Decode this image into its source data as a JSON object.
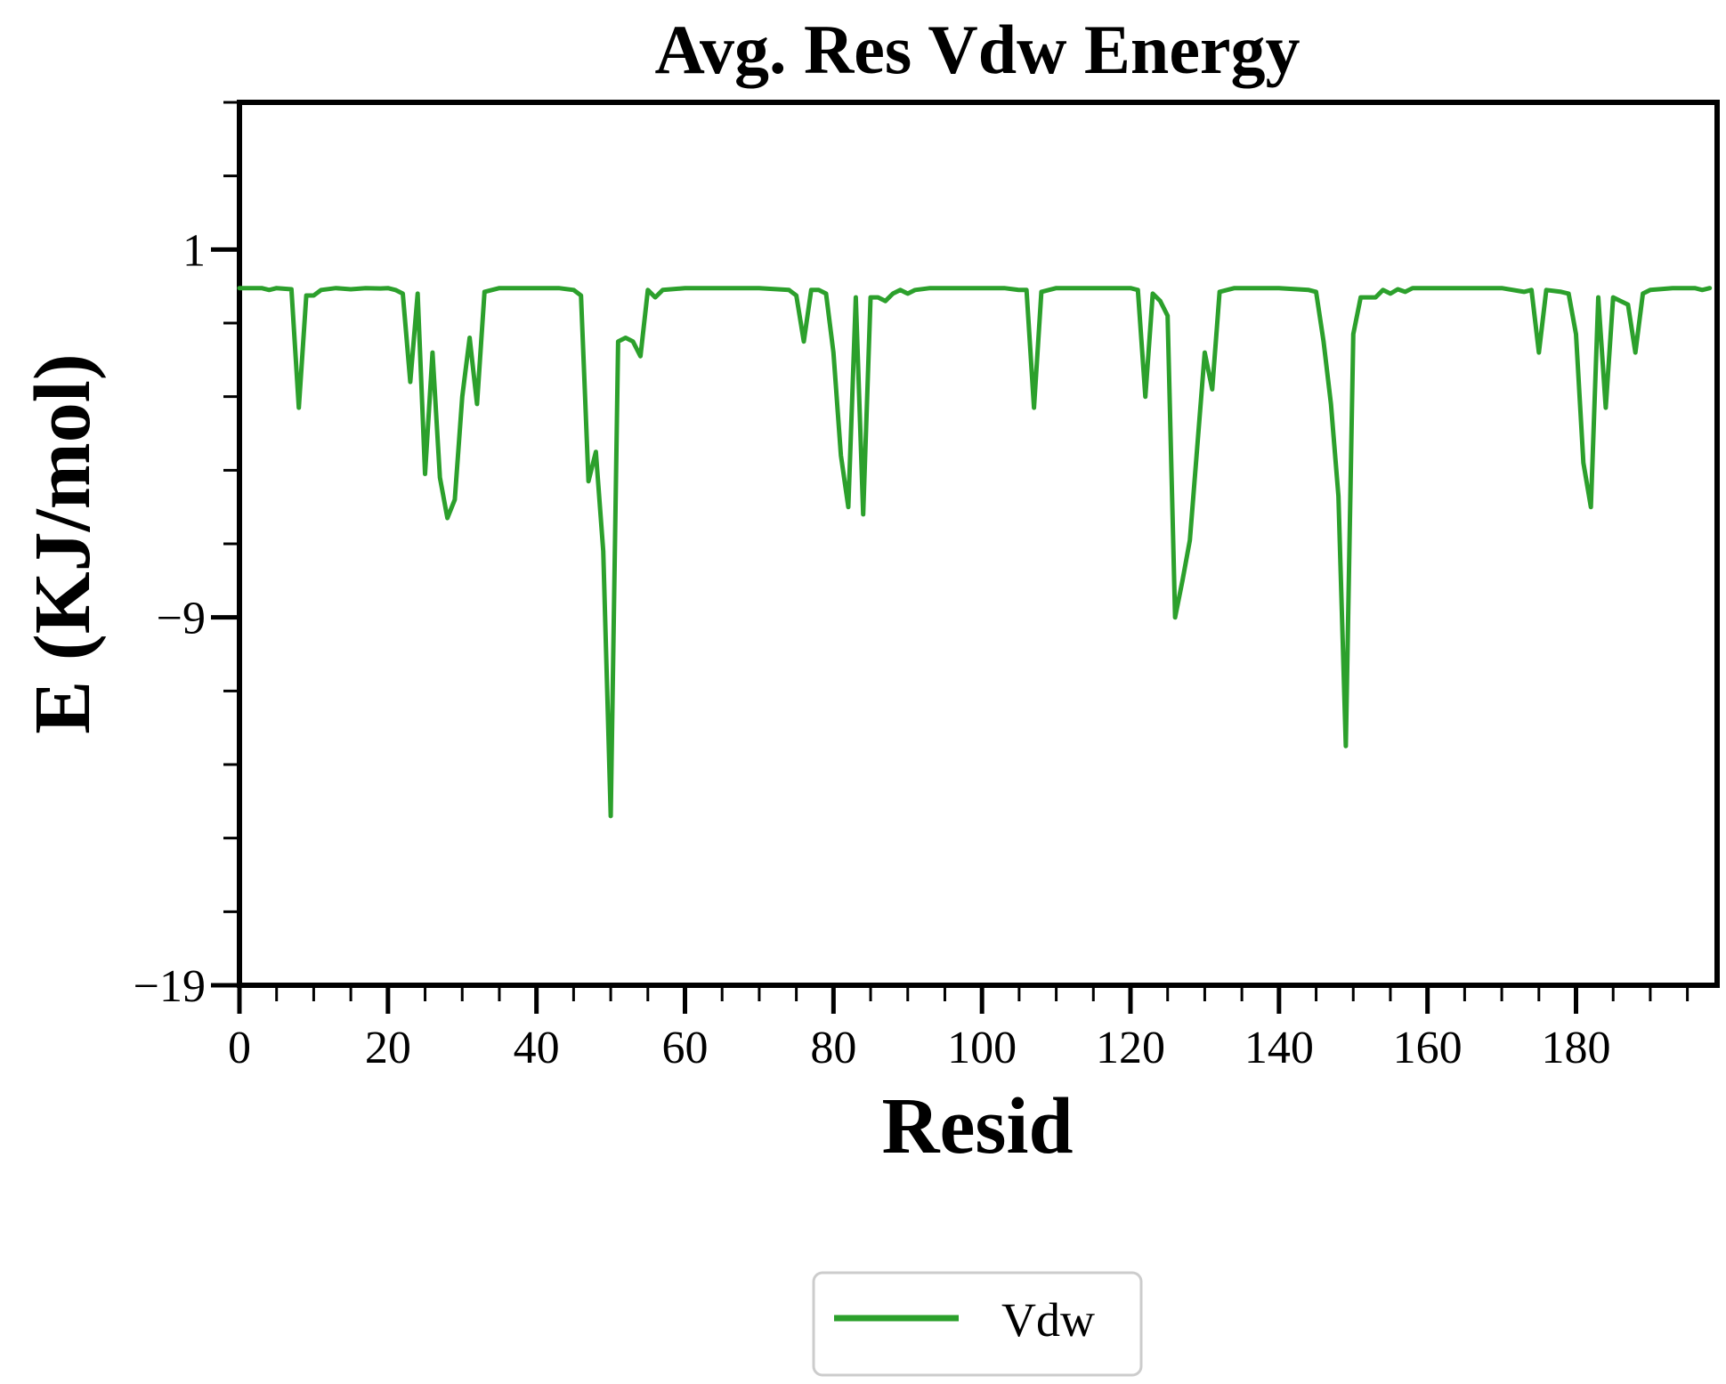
{
  "chart_data": {
    "type": "line",
    "title": "Avg. Res Vdw Energy",
    "xlabel": "Resid",
    "ylabel": "E (KJ/mol)",
    "xlim": [
      0,
      199
    ],
    "ylim": [
      -19,
      5
    ],
    "x_ticks": [
      0,
      20,
      40,
      60,
      80,
      100,
      120,
      140,
      160,
      180
    ],
    "x_tick_labels": [
      "0",
      "20",
      "40",
      "60",
      "80",
      "100",
      "120",
      "140",
      "160",
      "180"
    ],
    "y_ticks": [
      1,
      -9,
      -19
    ],
    "y_tick_labels": [
      "1",
      "−9",
      "−19"
    ],
    "x_minor_step": 5,
    "y_minor_step": 2,
    "grid": false,
    "legend_position": "bottom-center",
    "series": [
      {
        "name": "Vdw",
        "color": "#2ca02c",
        "points": [
          [
            0,
            -0.05
          ],
          [
            3,
            -0.05
          ],
          [
            4,
            -0.1
          ],
          [
            5,
            -0.05
          ],
          [
            7,
            -0.08
          ],
          [
            8,
            -3.3
          ],
          [
            9,
            -0.25
          ],
          [
            10,
            -0.25
          ],
          [
            11,
            -0.1
          ],
          [
            13,
            -0.05
          ],
          [
            15,
            -0.08
          ],
          [
            17,
            -0.05
          ],
          [
            19,
            -0.06
          ],
          [
            20,
            -0.05
          ],
          [
            21,
            -0.1
          ],
          [
            22,
            -0.2
          ],
          [
            23,
            -2.6
          ],
          [
            24,
            -0.2
          ],
          [
            25,
            -5.1
          ],
          [
            26,
            -1.8
          ],
          [
            27,
            -5.2
          ],
          [
            28,
            -6.3
          ],
          [
            29,
            -5.8
          ],
          [
            30,
            -3.0
          ],
          [
            31,
            -1.4
          ],
          [
            32,
            -3.2
          ],
          [
            33,
            -0.15
          ],
          [
            34,
            -0.1
          ],
          [
            35,
            -0.05
          ],
          [
            37,
            -0.05
          ],
          [
            40,
            -0.05
          ],
          [
            43,
            -0.05
          ],
          [
            45,
            -0.1
          ],
          [
            46,
            -0.25
          ],
          [
            47,
            -5.3
          ],
          [
            48,
            -4.5
          ],
          [
            49,
            -7.2
          ],
          [
            50,
            -14.4
          ],
          [
            51,
            -1.5
          ],
          [
            52,
            -1.4
          ],
          [
            53,
            -1.5
          ],
          [
            54,
            -1.9
          ],
          [
            55,
            -0.1
          ],
          [
            56,
            -0.3
          ],
          [
            57,
            -0.1
          ],
          [
            60,
            -0.05
          ],
          [
            65,
            -0.05
          ],
          [
            70,
            -0.05
          ],
          [
            74,
            -0.1
          ],
          [
            75,
            -0.25
          ],
          [
            76,
            -1.5
          ],
          [
            77,
            -0.1
          ],
          [
            78,
            -0.1
          ],
          [
            79,
            -0.2
          ],
          [
            80,
            -1.8
          ],
          [
            81,
            -4.6
          ],
          [
            82,
            -6.0
          ],
          [
            83,
            -0.3
          ],
          [
            84,
            -6.2
          ],
          [
            85,
            -0.3
          ],
          [
            86,
            -0.3
          ],
          [
            87,
            -0.4
          ],
          [
            88,
            -0.2
          ],
          [
            89,
            -0.1
          ],
          [
            90,
            -0.2
          ],
          [
            91,
            -0.1
          ],
          [
            93,
            -0.05
          ],
          [
            96,
            -0.05
          ],
          [
            100,
            -0.05
          ],
          [
            103,
            -0.05
          ],
          [
            105,
            -0.1
          ],
          [
            106,
            -0.1
          ],
          [
            107,
            -3.3
          ],
          [
            108,
            -0.15
          ],
          [
            109,
            -0.1
          ],
          [
            110,
            -0.05
          ],
          [
            115,
            -0.05
          ],
          [
            120,
            -0.05
          ],
          [
            121,
            -0.1
          ],
          [
            122,
            -3.0
          ],
          [
            123,
            -0.2
          ],
          [
            124,
            -0.4
          ],
          [
            125,
            -0.8
          ],
          [
            126,
            -9.0
          ],
          [
            127,
            -8.0
          ],
          [
            128,
            -6.9
          ],
          [
            130,
            -1.8
          ],
          [
            131,
            -2.8
          ],
          [
            132,
            -0.15
          ],
          [
            133,
            -0.1
          ],
          [
            134,
            -0.05
          ],
          [
            140,
            -0.05
          ],
          [
            144,
            -0.1
          ],
          [
            145,
            -0.15
          ],
          [
            146,
            -1.5
          ],
          [
            147,
            -3.2
          ],
          [
            148,
            -5.7
          ],
          [
            149,
            -12.5
          ],
          [
            150,
            -1.3
          ],
          [
            151,
            -0.3
          ],
          [
            153,
            -0.3
          ],
          [
            154,
            -0.1
          ],
          [
            155,
            -0.2
          ],
          [
            156,
            -0.08
          ],
          [
            157,
            -0.15
          ],
          [
            158,
            -0.05
          ],
          [
            160,
            -0.05
          ],
          [
            165,
            -0.05
          ],
          [
            170,
            -0.05
          ],
          [
            173,
            -0.15
          ],
          [
            174,
            -0.1
          ],
          [
            175,
            -1.8
          ],
          [
            176,
            -0.1
          ],
          [
            178,
            -0.15
          ],
          [
            179,
            -0.2
          ],
          [
            180,
            -1.3
          ],
          [
            181,
            -4.8
          ],
          [
            182,
            -6.0
          ],
          [
            183,
            -0.3
          ],
          [
            184,
            -3.3
          ],
          [
            185,
            -0.3
          ],
          [
            186,
            -0.4
          ],
          [
            187,
            -0.5
          ],
          [
            188,
            -1.8
          ],
          [
            189,
            -0.2
          ],
          [
            190,
            -0.1
          ],
          [
            193,
            -0.05
          ],
          [
            196,
            -0.05
          ],
          [
            197,
            -0.1
          ],
          [
            198,
            -0.05
          ]
        ]
      }
    ]
  }
}
